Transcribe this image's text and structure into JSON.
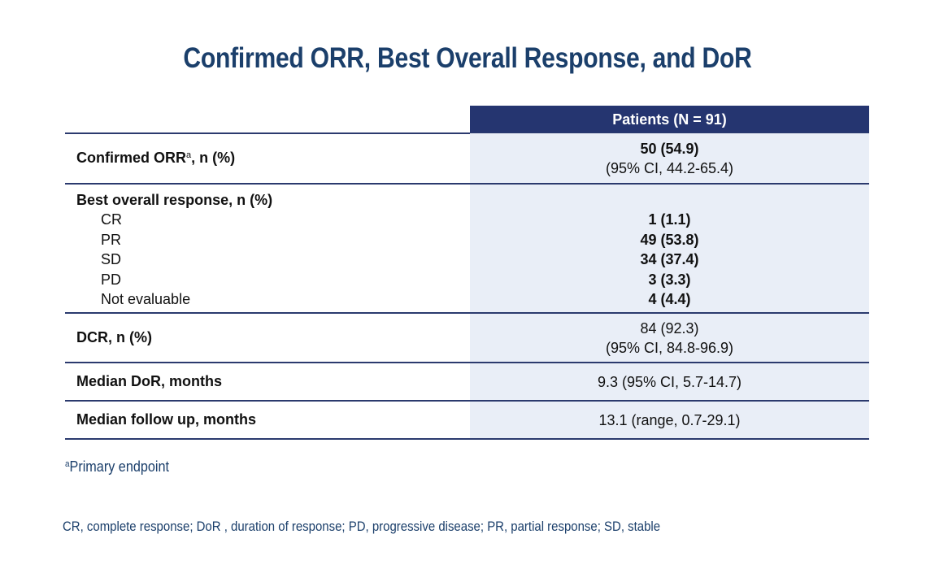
{
  "title": "Confirmed ORR, Best Overall Response, and DoR",
  "table": {
    "header": "Patients (N = 91)",
    "rows": [
      {
        "label": "Confirmed ORR",
        "label_sup": "a",
        "label_suffix": ", n (%)",
        "value": "50 (54.9)",
        "detail": "(95% CI, 44.2-65.4)"
      },
      {
        "label": "Best overall response, n (%)",
        "items": [
          {
            "label": "CR",
            "value": "1 (1.1)"
          },
          {
            "label": "PR",
            "value": "49 (53.8)"
          },
          {
            "label": "SD",
            "value": "34 (37.4)"
          },
          {
            "label": "PD",
            "value": "3 (3.3)"
          },
          {
            "label": "Not evaluable",
            "value": "4 (4.4)"
          }
        ]
      },
      {
        "label": "DCR, n (%)",
        "value": "84 (92.3)",
        "detail": "(95% CI, 84.8-96.9)"
      },
      {
        "label": "Median DoR, months",
        "value": "9.3 (95% CI, 5.7-14.7)"
      },
      {
        "label": "Median follow up, months",
        "value": "13.1 (range, 0.7-29.1)"
      }
    ]
  },
  "footnote": {
    "sup": "a",
    "text": "Primary endpoint"
  },
  "abbreviations": "CR, complete response; DoR , duration of response; PD, progressive disease; PR, partial response; SD, stable"
}
